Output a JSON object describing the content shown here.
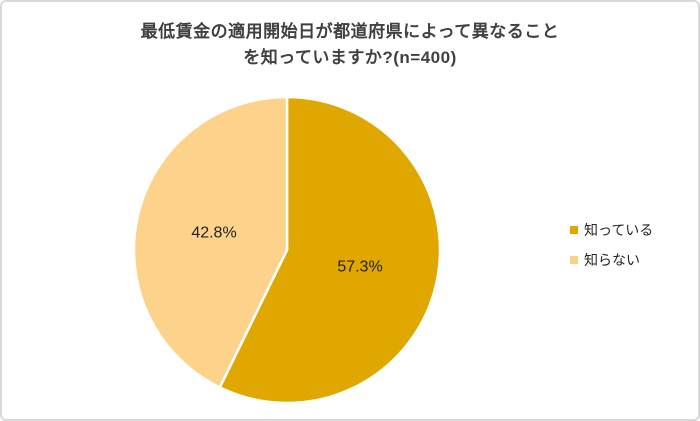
{
  "frame": {
    "background_color": "#FFFFFF",
    "border_color": "#D9D9D9"
  },
  "chart_data": {
    "type": "pie",
    "title": "最低賃金の適用開始日が都道府県によって異なること\nを知っていますか?(n=400)",
    "sample_size_text": "n=400",
    "start_angle_deg": 0,
    "direction": "clockwise",
    "legend_position": "right",
    "slice_border_color": "#FFFFFF",
    "title_color": "#404040",
    "label_color": "#212121",
    "slices": [
      {
        "label": "知っている",
        "value": 57.3,
        "display": "57.3%",
        "color": "#DFA700"
      },
      {
        "label": "知らない",
        "value": 42.8,
        "display": "42.8%",
        "color": "#FDD28A"
      }
    ]
  }
}
